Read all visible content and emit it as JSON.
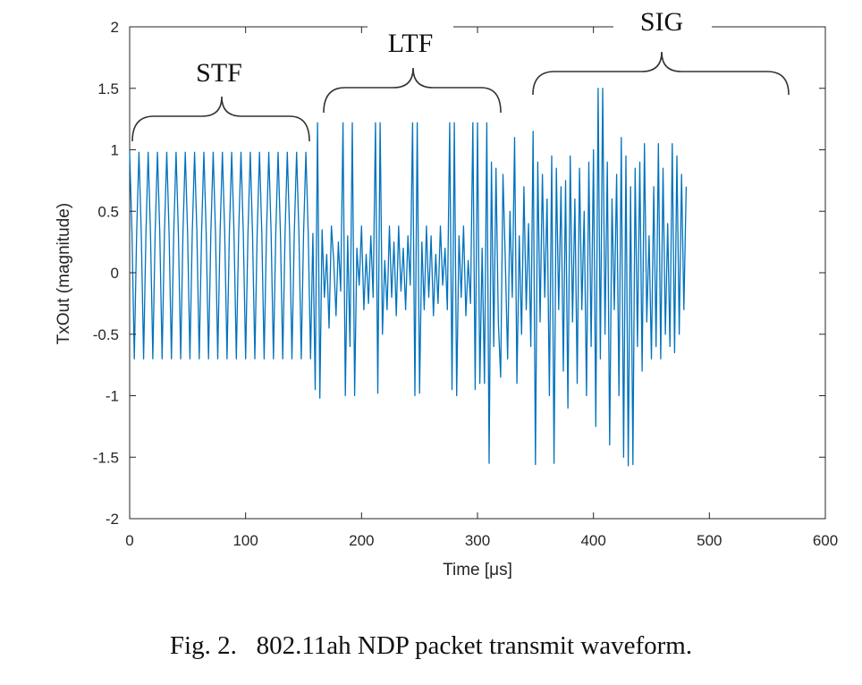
{
  "chart_data": {
    "type": "line",
    "xlabel": "Time [μs]",
    "ylabel": "TxOut (magnitude)",
    "xlim": [
      0,
      600
    ],
    "ylim": [
      -2,
      2
    ],
    "xticks": [
      0,
      100,
      200,
      300,
      400,
      500,
      600
    ],
    "xtick_labels": [
      "0",
      "100",
      "200",
      "300",
      "400",
      "500",
      "600"
    ],
    "yticks": [
      2,
      1.5,
      1,
      0.5,
      0,
      -0.5,
      -1,
      -1.5,
      -2
    ],
    "ytick_labels": [
      "2",
      "1.5",
      "1",
      "0.5",
      "0",
      "-0.5",
      "-1",
      "-1.5",
      "-2"
    ],
    "grid": false,
    "series_color": "#0072BD",
    "segments": [
      {
        "label": "STF",
        "x_start": 0,
        "x_end": 160
      },
      {
        "label": "LTF",
        "x_start": 160,
        "x_end": 320
      },
      {
        "label": "SIG",
        "x_start": 320,
        "x_end": 560
      }
    ],
    "series": [
      {
        "x_start": 0,
        "dx": 2,
        "y_approx": [
          0.98,
          0.32,
          -0.7,
          0.32,
          0.98,
          0.32,
          -0.7,
          0.32,
          0.98,
          0.32,
          -0.7,
          0.32,
          0.98,
          0.32,
          -0.7,
          0.32,
          0.98,
          0.32,
          -0.7,
          0.32,
          0.98,
          0.32,
          -0.7,
          0.32,
          0.98,
          0.32,
          -0.7,
          0.32,
          0.98,
          0.32,
          -0.7,
          0.32,
          0.98,
          0.32,
          -0.7,
          0.32,
          0.98,
          0.32,
          -0.7,
          0.32,
          0.98,
          0.32,
          -0.7,
          0.32,
          0.98,
          0.32,
          -0.7,
          0.32,
          0.98,
          0.32,
          -0.7,
          0.32,
          0.98,
          0.32,
          -0.7,
          0.32,
          0.98,
          0.32,
          -0.7,
          0.32,
          0.98,
          0.32,
          -0.7,
          0.32,
          0.98,
          0.32,
          -0.7,
          0.32,
          0.98,
          0.32,
          -0.7,
          0.32,
          0.98,
          0.32,
          -0.7,
          0.32,
          0.98,
          0.32,
          -0.7,
          0.32,
          -0.95,
          1.22,
          -1.02,
          0.35,
          -0.2,
          0.15,
          -0.45,
          0.38,
          0.1,
          -0.35,
          0.25,
          -0.15,
          1.22,
          -1.0,
          0.3,
          -0.6,
          1.22,
          -1.0,
          0.2,
          -0.1,
          0.38,
          -0.3,
          0.15,
          -0.25,
          0.3,
          -0.2,
          1.22,
          -0.98,
          1.22,
          -0.5,
          0.1,
          -0.3,
          0.38,
          -0.2,
          0.25,
          -0.35,
          0.38,
          -0.15,
          0.2,
          -0.3,
          0.3,
          -0.1,
          1.22,
          -1.0,
          1.22,
          -0.98,
          0.25,
          -0.3,
          0.38,
          -0.2,
          0.3,
          -0.35,
          0.15,
          -0.25,
          0.38,
          -0.1,
          0.2,
          -0.3,
          1.22,
          -0.95,
          1.22,
          -1.0,
          0.3,
          -0.2,
          0.38,
          -0.35,
          0.1,
          -0.25,
          1.22,
          -0.95,
          1.22,
          -0.9,
          0.2,
          -0.9,
          1.22,
          -1.55,
          0.9,
          -0.6,
          0.85,
          -0.4,
          -0.85,
          0.8,
          0.1,
          -0.7,
          0.5,
          -0.2,
          1.1,
          -0.9,
          0.3,
          -0.5,
          0.7,
          -0.3,
          0.4,
          -0.6,
          1.15,
          -1.56,
          0.9,
          -0.4,
          0.8,
          -0.2,
          0.6,
          -1.0,
          0.95,
          -1.55,
          0.85,
          -0.3,
          0.7,
          -0.8,
          0.75,
          -1.1,
          0.95,
          -0.4,
          0.6,
          -0.9,
          0.85,
          -0.3,
          0.5,
          -1.0,
          0.9,
          -0.6,
          1.0,
          -1.25,
          1.5,
          -0.7,
          1.5,
          -0.5,
          0.9,
          -1.4,
          0.6,
          -0.3,
          0.8,
          -1.0,
          1.1,
          -1.5,
          0.95,
          -1.57,
          0.7,
          -1.56,
          0.85,
          -0.6,
          0.9,
          -0.8,
          1.05,
          -0.4,
          0.3,
          -0.7,
          0.7,
          -0.6,
          1.05,
          -0.7,
          0.85,
          -0.5,
          0.4,
          -0.6,
          1.05,
          -0.65,
          0.95,
          -0.5,
          0.8,
          -0.3,
          0.7
        ]
      }
    ]
  },
  "annotations": {
    "stf": "STF",
    "ltf": "LTF",
    "sig": "SIG"
  },
  "caption": {
    "label": "Fig. 2.",
    "text": "802.11ah NDP packet transmit waveform."
  }
}
